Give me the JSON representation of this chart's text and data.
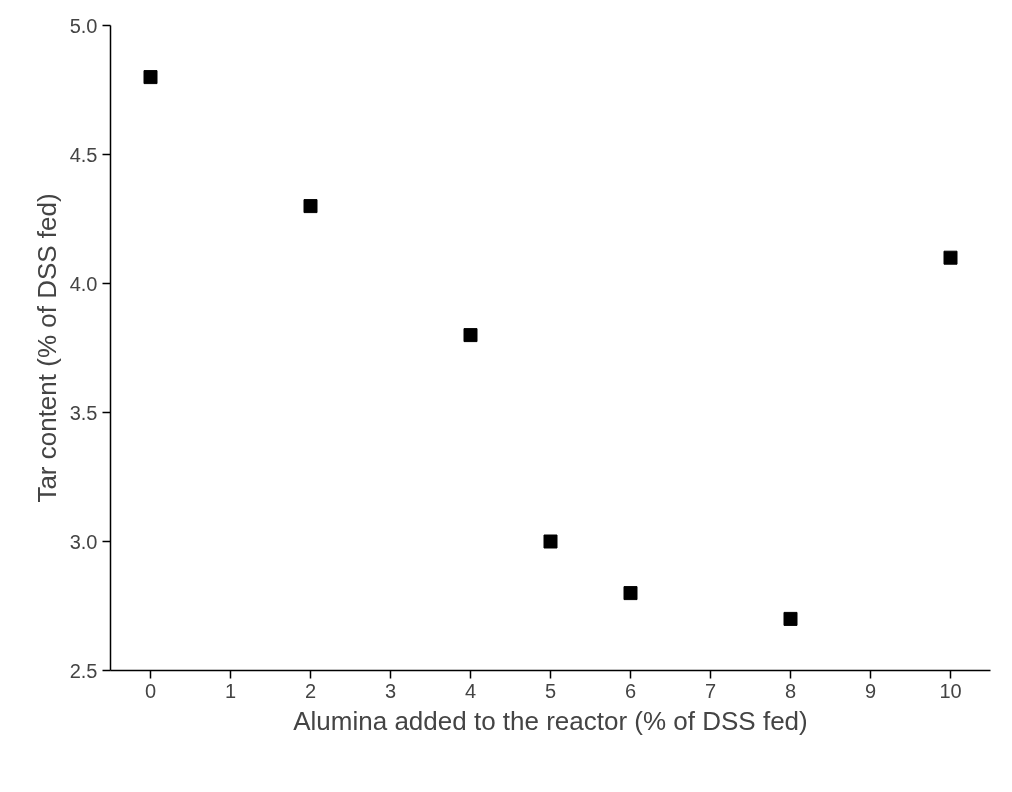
{
  "chart_data": {
    "type": "scatter",
    "xlabel": "Alumina added to the reactor (% of DSS fed)",
    "ylabel": "Tar content (% of DSS fed)",
    "x": [
      0,
      2,
      4,
      5,
      6,
      8,
      10
    ],
    "series": [
      {
        "color": "#000000",
        "values": [
          4.8,
          4.3,
          3.8,
          3.0,
          2.8,
          2.7,
          4.1
        ]
      }
    ],
    "xlim": [
      -0.5,
      10.5
    ],
    "ylim": [
      2.5,
      5.0
    ],
    "xticks": [
      0,
      1,
      2,
      3,
      4,
      5,
      6,
      7,
      8,
      9,
      10
    ],
    "yticks": [
      {
        "value": 2.5,
        "label": "2.5"
      },
      {
        "value": 3.0,
        "label": "3.0"
      },
      {
        "value": 3.5,
        "label": "3.5"
      },
      {
        "value": 4.0,
        "label": "4.0"
      },
      {
        "value": 4.5,
        "label": "4.5"
      },
      {
        "value": 5.0,
        "label": "5.0"
      }
    ],
    "marker": "square",
    "grid": false
  }
}
